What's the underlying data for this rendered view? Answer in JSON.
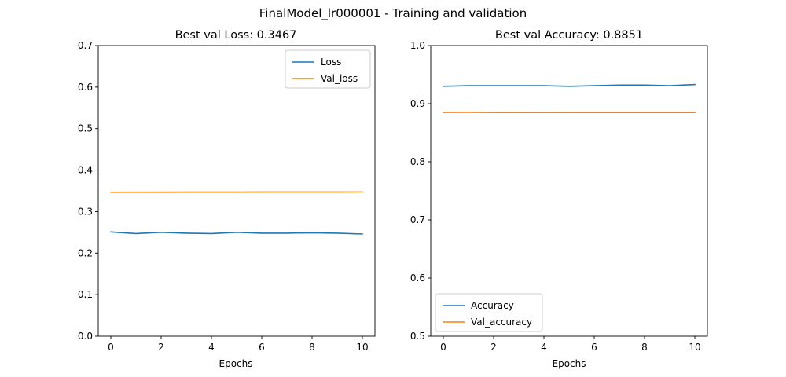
{
  "figure": {
    "suptitle": "FinalModel_lr000001 - Training and validation"
  },
  "chart_data": [
    {
      "type": "line",
      "title": "Best val Loss: 0.3467",
      "xlabel": "Epochs",
      "ylabel": "",
      "xlim": [
        -0.5,
        10.5
      ],
      "ylim": [
        0.0,
        0.7
      ],
      "xticks": [
        "0",
        "2",
        "4",
        "6",
        "8",
        "10"
      ],
      "yticks": [
        "0.0",
        "0.1",
        "0.2",
        "0.3",
        "0.4",
        "0.5",
        "0.6",
        "0.7"
      ],
      "grid": false,
      "legend_position": "top-right",
      "x": [
        0,
        1,
        2,
        3,
        4,
        5,
        6,
        7,
        8,
        9,
        10
      ],
      "series": [
        {
          "name": "Loss",
          "color": "#1f77b4",
          "values": [
            0.251,
            0.247,
            0.25,
            0.248,
            0.247,
            0.25,
            0.248,
            0.248,
            0.249,
            0.248,
            0.246
          ]
        },
        {
          "name": "Val_loss",
          "color": "#ff7f0e",
          "values": [
            0.3467,
            0.3468,
            0.3469,
            0.347,
            0.3471,
            0.3471,
            0.3472,
            0.3472,
            0.3473,
            0.3473,
            0.3474
          ]
        }
      ]
    },
    {
      "type": "line",
      "title": "Best val Accuracy: 0.8851",
      "xlabel": "Epochs",
      "ylabel": "",
      "xlim": [
        -0.5,
        10.5
      ],
      "ylim": [
        0.5,
        1.0
      ],
      "xticks": [
        "0",
        "2",
        "4",
        "6",
        "8",
        "10"
      ],
      "yticks": [
        "0.5",
        "0.6",
        "0.7",
        "0.8",
        "0.9",
        "1.0"
      ],
      "grid": false,
      "legend_position": "bottom-left",
      "x": [
        0,
        1,
        2,
        3,
        4,
        5,
        6,
        7,
        8,
        9,
        10
      ],
      "series": [
        {
          "name": "Accuracy",
          "color": "#1f77b4",
          "values": [
            0.93,
            0.931,
            0.931,
            0.931,
            0.931,
            0.93,
            0.931,
            0.932,
            0.932,
            0.931,
            0.933
          ]
        },
        {
          "name": "Val_accuracy",
          "color": "#ff7f0e",
          "values": [
            0.8851,
            0.8852,
            0.8848,
            0.8849,
            0.8848,
            0.8849,
            0.8849,
            0.8849,
            0.8849,
            0.8849,
            0.8849
          ]
        }
      ]
    }
  ]
}
